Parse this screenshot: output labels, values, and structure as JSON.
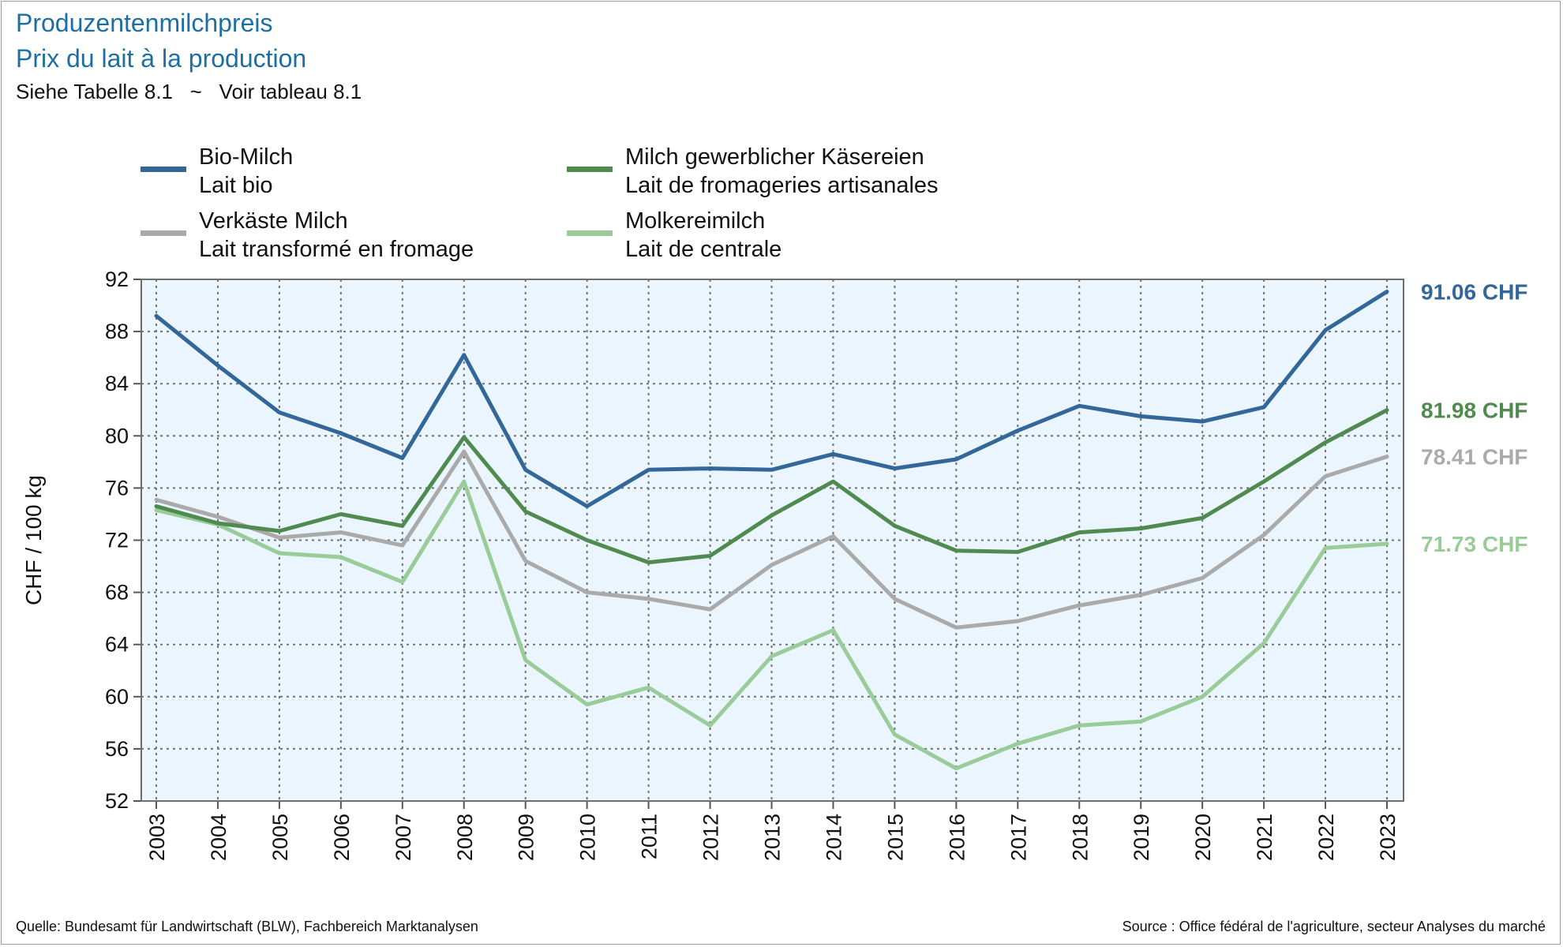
{
  "header": {
    "title": "Produzentenmilchpreis",
    "subtitle": "Prix du lait à la production",
    "note": "Siehe Tabelle 8.1   ~   Voir tableau 8.1"
  },
  "footer": {
    "source_de": "Quelle: Bundesamt für Landwirtschaft (BLW), Fachbereich Marktanalysen",
    "source_fr": "Source : Office fédéral de l'agriculture, secteur Analyses du marché"
  },
  "chart_data": {
    "type": "line",
    "ylabel": "CHF / 100 kg",
    "ylim": [
      52,
      92
    ],
    "yticks": [
      52,
      56,
      60,
      64,
      68,
      72,
      76,
      80,
      84,
      88,
      92
    ],
    "grid": true,
    "legend_position": "top",
    "x": [
      "2003",
      "2004",
      "2005",
      "2006",
      "2007",
      "2008",
      "2009",
      "2010",
      "2011",
      "2012",
      "2013",
      "2014",
      "2015",
      "2016",
      "2017",
      "2018",
      "2019",
      "2020",
      "2021",
      "2022",
      "2023"
    ],
    "series": [
      {
        "name_de": "Bio-Milch",
        "name_fr": "Lait bio",
        "color": "#336699",
        "end_label": "91.06 CHF",
        "values": [
          89.2,
          85.4,
          81.8,
          80.2,
          78.3,
          86.2,
          77.4,
          74.6,
          77.4,
          77.5,
          77.4,
          78.6,
          77.5,
          78.2,
          80.4,
          82.3,
          81.5,
          81.1,
          82.2,
          88.1,
          91.06
        ]
      },
      {
        "name_de": "Milch gewerblicher Käsereien",
        "name_fr": "Lait de fromageries artisanales",
        "color": "#4f8a4f",
        "end_label": "81.98 CHF",
        "values": [
          74.6,
          73.3,
          72.7,
          74.0,
          73.1,
          79.9,
          74.2,
          72.0,
          70.3,
          70.8,
          73.9,
          76.5,
          73.1,
          71.2,
          71.1,
          72.6,
          72.9,
          73.7,
          76.5,
          79.5,
          81.98
        ]
      },
      {
        "name_de": "Verkäste Milch",
        "name_fr": "Lait transformé en fromage",
        "color": "#aaaaaa",
        "end_label": "78.41 CHF",
        "values": [
          75.1,
          73.8,
          72.2,
          72.6,
          71.6,
          78.8,
          70.4,
          68.0,
          67.5,
          66.7,
          70.1,
          72.3,
          67.5,
          65.3,
          65.8,
          67.0,
          67.8,
          69.1,
          72.4,
          76.9,
          78.41
        ]
      },
      {
        "name_de": "Molkereimilch",
        "name_fr": "Lait de centrale",
        "color": "#99cc99",
        "end_label": "71.73 CHF",
        "values": [
          74.3,
          73.2,
          71.0,
          70.7,
          68.8,
          76.5,
          62.8,
          59.4,
          60.7,
          57.8,
          63.1,
          65.1,
          57.1,
          54.5,
          56.4,
          57.8,
          58.1,
          60.0,
          64.1,
          71.4,
          71.73
        ]
      }
    ]
  }
}
